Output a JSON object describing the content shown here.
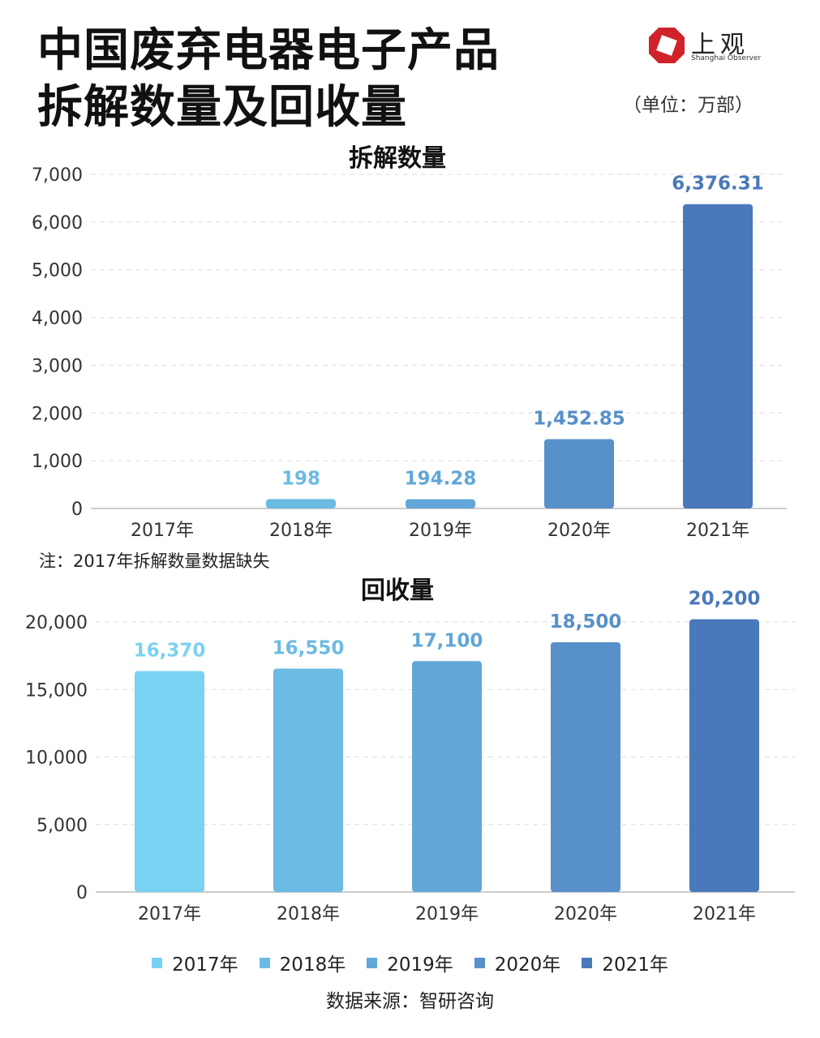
{
  "header": {
    "title_line1": "中国废弃电器电子产品",
    "title_line2": "拆解数量及回收量",
    "unit": "（单位：万部）",
    "logo_text": "上观",
    "logo_subtext": "Shanghai Observer"
  },
  "note": "注：2017年拆解数量数据缺失",
  "source": "数据来源：智研咨询",
  "colors": [
    "#79d2f1",
    "#6cbbe4",
    "#62a7d8",
    "#5890c9",
    "#4a79bb"
  ],
  "legend": [
    "2017年",
    "2018年",
    "2019年",
    "2020年",
    "2021年"
  ],
  "chart_data": [
    {
      "type": "bar",
      "title": "拆解数量",
      "categories": [
        "2017年",
        "2018年",
        "2019年",
        "2020年",
        "2021年"
      ],
      "values": [
        null,
        198,
        194.28,
        1452.85,
        6376.31
      ],
      "data_labels": [
        "",
        "198",
        "194.28",
        "1,452.85",
        "6,376.31"
      ],
      "ylim": [
        0,
        7000
      ],
      "yticks": [
        0,
        1000,
        2000,
        3000,
        4000,
        5000,
        6000,
        7000
      ],
      "ytick_labels": [
        "0",
        "1,000",
        "2,000",
        "3,000",
        "4,000",
        "5,000",
        "6,000",
        "7,000"
      ],
      "grid": true
    },
    {
      "type": "bar",
      "title": "回收量",
      "categories": [
        "2017年",
        "2018年",
        "2019年",
        "2020年",
        "2021年"
      ],
      "values": [
        16370,
        16550,
        17100,
        18500,
        20200
      ],
      "data_labels": [
        "16,370",
        "16,550",
        "17,100",
        "18,500",
        "20,200"
      ],
      "ylim": [
        0,
        20000
      ],
      "yticks": [
        0,
        5000,
        10000,
        15000,
        20000
      ],
      "ytick_labels": [
        "0",
        "5,000",
        "10,000",
        "15,000",
        "20,000"
      ],
      "grid": true
    }
  ]
}
